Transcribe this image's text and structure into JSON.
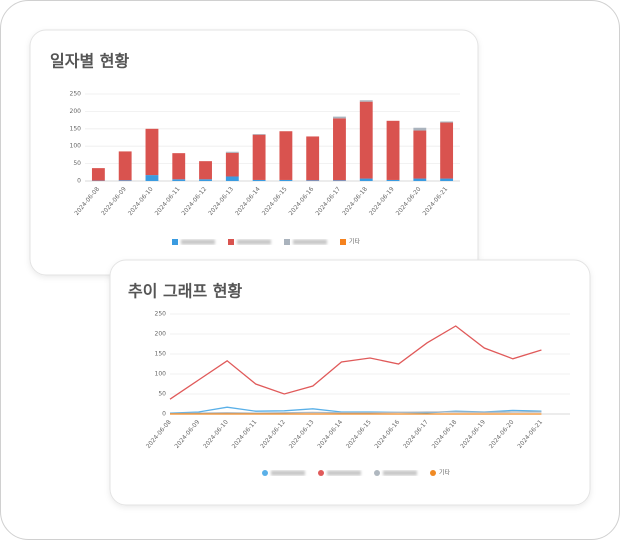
{
  "chart_data": [
    {
      "type": "stacked_bar",
      "title": "일자별 현황",
      "categories": [
        "2024-06-08",
        "2024-06-09",
        "2024-06-10",
        "2024-06-11",
        "2024-06-12",
        "2024-06-13",
        "2024-06-14",
        "2024-06-15",
        "2024-06-16",
        "2024-06-17",
        "2024-06-18",
        "2024-06-19",
        "2024-06-20",
        "2024-06-21"
      ],
      "ylim": [
        0,
        250
      ],
      "yticks": [
        0,
        50,
        100,
        150,
        200,
        250
      ],
      "grid": true,
      "series": [
        {
          "color": "#3a9be0",
          "values": [
            1,
            2,
            17,
            5,
            5,
            13,
            3,
            3,
            2,
            2,
            7,
            3,
            7,
            7
          ]
        },
        {
          "color": "#d9534f",
          "values": [
            36,
            83,
            133,
            75,
            52,
            68,
            130,
            140,
            126,
            178,
            221,
            170,
            138,
            161
          ]
        },
        {
          "color": "#aab3bd",
          "values": [
            0,
            0,
            0,
            0,
            0,
            3,
            2,
            0,
            0,
            5,
            4,
            0,
            8,
            3
          ]
        },
        {
          "name": "기타",
          "color": "#f5821f",
          "values": [
            0,
            0,
            0,
            0,
            0,
            0,
            0,
            0,
            0,
            0,
            0,
            0,
            0,
            0
          ]
        }
      ]
    },
    {
      "type": "line",
      "title": "추이 그래프 현황",
      "categories": [
        "2024-06-08",
        "2024-06-09",
        "2024-06-10",
        "2024-06-11",
        "2024-06-12",
        "2024-06-13",
        "2024-06-14",
        "2024-06-15",
        "2024-06-16",
        "2024-06-17",
        "2024-06-18",
        "2024-06-19",
        "2024-06-20",
        "2024-06-21"
      ],
      "ylim": [
        0,
        250
      ],
      "yticks": [
        0,
        50,
        100,
        150,
        200,
        250
      ],
      "grid": true,
      "series": [
        {
          "color": "#5ab0e8",
          "values": [
            2,
            5,
            17,
            7,
            8,
            13,
            5,
            5,
            4,
            3,
            7,
            5,
            9,
            7
          ]
        },
        {
          "color": "#e05a5a",
          "values": [
            37,
            85,
            133,
            75,
            50,
            70,
            130,
            140,
            125,
            178,
            220,
            165,
            138,
            160
          ]
        },
        {
          "color": "#b0b8c0",
          "values": [
            1,
            2,
            3,
            2,
            3,
            4,
            3,
            3,
            4,
            5,
            5,
            4,
            5,
            5
          ]
        },
        {
          "name": "기타",
          "color": "#f08a24",
          "values": [
            0,
            0,
            0,
            0,
            0,
            0,
            0,
            0,
            0,
            0,
            0,
            0,
            0,
            0
          ]
        }
      ]
    }
  ]
}
